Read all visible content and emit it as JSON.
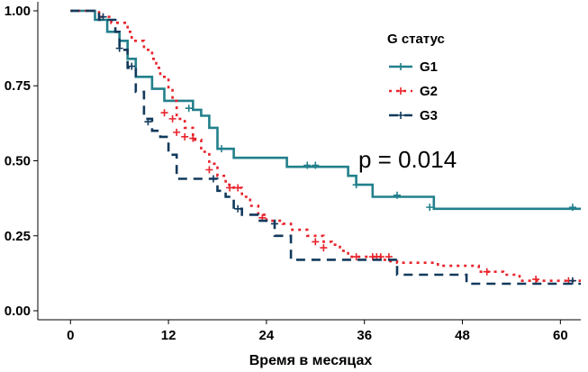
{
  "chart_data": {
    "type": "line",
    "title": "",
    "xlabel": "Время в месяцах",
    "ylabel": "",
    "xlim": [
      -4,
      62.5
    ],
    "ylim": [
      -0.03,
      1.03
    ],
    "xticks": [
      0,
      12,
      24,
      36,
      48,
      60
    ],
    "yticks": [
      0.0,
      0.25,
      0.5,
      0.75,
      1.0
    ],
    "ytick_labels": [
      "0.00",
      "0.25",
      "0.50",
      "0.75",
      "1.00"
    ],
    "legend": {
      "title": "G статус",
      "position": "top-right"
    },
    "annotation": "p = 0.014",
    "series": [
      {
        "name": "G1",
        "color": "#22808c",
        "dash": "solid",
        "steps": [
          [
            0,
            1.0
          ],
          [
            2,
            1.0
          ],
          [
            3,
            0.97
          ],
          [
            4,
            0.97
          ],
          [
            4.5,
            0.93
          ],
          [
            5,
            0.93
          ],
          [
            6,
            0.9
          ],
          [
            6.5,
            0.9
          ],
          [
            7,
            0.84
          ],
          [
            7.5,
            0.84
          ],
          [
            8,
            0.78
          ],
          [
            9,
            0.78
          ],
          [
            10,
            0.74
          ],
          [
            11,
            0.74
          ],
          [
            11.5,
            0.7
          ],
          [
            14,
            0.7
          ],
          [
            15,
            0.67
          ],
          [
            15.5,
            0.67
          ],
          [
            16,
            0.65
          ],
          [
            16.5,
            0.65
          ],
          [
            17,
            0.61
          ],
          [
            17.5,
            0.61
          ],
          [
            18,
            0.54
          ],
          [
            19,
            0.54
          ],
          [
            20,
            0.51
          ],
          [
            26,
            0.51
          ],
          [
            26.5,
            0.48
          ],
          [
            33,
            0.48
          ],
          [
            34,
            0.45
          ],
          [
            34.5,
            0.45
          ],
          [
            35,
            0.42
          ],
          [
            36,
            0.42
          ],
          [
            37,
            0.38
          ],
          [
            44,
            0.38
          ],
          [
            44.5,
            0.34
          ],
          [
            62.5,
            0.34
          ]
        ],
        "censors": [
          [
            14.5,
            0.675
          ],
          [
            18.5,
            0.54
          ],
          [
            29,
            0.485
          ],
          [
            30,
            0.485
          ],
          [
            35,
            0.42
          ],
          [
            40,
            0.385
          ],
          [
            44,
            0.345
          ],
          [
            61.5,
            0.345
          ]
        ]
      },
      {
        "name": "G2",
        "color": "#e8232b",
        "dash": "dotted",
        "steps": [
          [
            0,
            1.0
          ],
          [
            3,
            1.0
          ],
          [
            3.5,
            0.98
          ],
          [
            4,
            0.98
          ],
          [
            5,
            0.96
          ],
          [
            6,
            0.96
          ],
          [
            7,
            0.93
          ],
          [
            7.5,
            0.9
          ],
          [
            8.5,
            0.9
          ],
          [
            9,
            0.87
          ],
          [
            10,
            0.84
          ],
          [
            10.5,
            0.81
          ],
          [
            11,
            0.78
          ],
          [
            12,
            0.74
          ],
          [
            12.5,
            0.7
          ],
          [
            13,
            0.64
          ],
          [
            14,
            0.61
          ],
          [
            15,
            0.57
          ],
          [
            16,
            0.53
          ],
          [
            17,
            0.49
          ],
          [
            18,
            0.45
          ],
          [
            19,
            0.42
          ],
          [
            20,
            0.41
          ],
          [
            21,
            0.38
          ],
          [
            22,
            0.35
          ],
          [
            23,
            0.32
          ],
          [
            24,
            0.3
          ],
          [
            26,
            0.29
          ],
          [
            27,
            0.27
          ],
          [
            29,
            0.25
          ],
          [
            31,
            0.23
          ],
          [
            32,
            0.22
          ],
          [
            33,
            0.2
          ],
          [
            34,
            0.18
          ],
          [
            35,
            0.18
          ],
          [
            37,
            0.18
          ],
          [
            38,
            0.17
          ],
          [
            39,
            0.165
          ],
          [
            40,
            0.16
          ],
          [
            45,
            0.15
          ],
          [
            50,
            0.13
          ],
          [
            53,
            0.12
          ],
          [
            55,
            0.1
          ],
          [
            62.5,
            0.1
          ]
        ],
        "censors": [
          [
            11.5,
            0.66
          ],
          [
            12.5,
            0.64
          ],
          [
            13,
            0.595
          ],
          [
            14,
            0.58
          ],
          [
            15,
            0.575
          ],
          [
            17,
            0.47
          ],
          [
            19.5,
            0.41
          ],
          [
            20.5,
            0.41
          ],
          [
            23.5,
            0.31
          ],
          [
            30,
            0.23
          ],
          [
            31,
            0.21
          ],
          [
            35,
            0.18
          ],
          [
            37,
            0.18
          ],
          [
            37.5,
            0.18
          ],
          [
            38,
            0.18
          ],
          [
            39,
            0.18
          ],
          [
            51,
            0.13
          ],
          [
            57,
            0.105
          ],
          [
            61,
            0.1
          ]
        ]
      },
      {
        "name": "G3",
        "color": "#123a5c",
        "dash": "dashed",
        "steps": [
          [
            0,
            1.0
          ],
          [
            3,
            1.0
          ],
          [
            3.5,
            0.97
          ],
          [
            5,
            0.97
          ],
          [
            5.5,
            0.93
          ],
          [
            6,
            0.87
          ],
          [
            7,
            0.81
          ],
          [
            8,
            0.73
          ],
          [
            9,
            0.64
          ],
          [
            10,
            0.6
          ],
          [
            11,
            0.58
          ],
          [
            12,
            0.52
          ],
          [
            13,
            0.44
          ],
          [
            14,
            0.44
          ],
          [
            16,
            0.44
          ],
          [
            17,
            0.44
          ],
          [
            18,
            0.4
          ],
          [
            19,
            0.38
          ],
          [
            20,
            0.34
          ],
          [
            21,
            0.32
          ],
          [
            23,
            0.3
          ],
          [
            25,
            0.25
          ],
          [
            27,
            0.17
          ],
          [
            38,
            0.17
          ],
          [
            40,
            0.12
          ],
          [
            48,
            0.12
          ],
          [
            48.5,
            0.09
          ],
          [
            62.5,
            0.09
          ]
        ],
        "censors": [
          [
            4,
            0.98
          ],
          [
            6,
            0.875
          ],
          [
            7.5,
            0.815
          ],
          [
            9.5,
            0.63
          ],
          [
            17.5,
            0.44
          ],
          [
            20.5,
            0.34
          ],
          [
            25,
            0.29
          ],
          [
            61.5,
            0.1
          ]
        ]
      }
    ]
  }
}
